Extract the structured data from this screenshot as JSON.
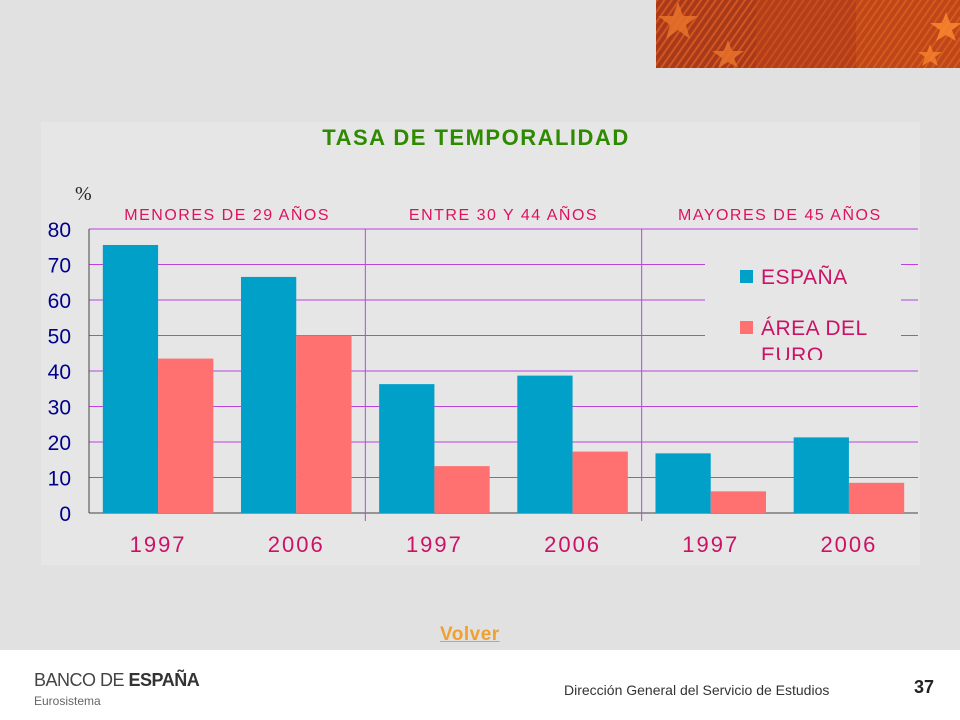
{
  "colors": {
    "espana": "#00a0c8",
    "euro": "#ff7070",
    "title": "#2e8b00",
    "group": "#e01060",
    "grid": "#bb44dd",
    "link": "#f0a030"
  },
  "chart_data": {
    "type": "bar",
    "title": "TASA DE TEMPORALIDAD",
    "ylabel": "%",
    "ylim": [
      0,
      80
    ],
    "yticks": [
      "0",
      "10",
      "20",
      "30",
      "40",
      "50",
      "60",
      "70",
      "80"
    ],
    "grid": true,
    "legend_position": "top-right",
    "groups": [
      "MENORES DE 29 AÑOS",
      "ENTRE 30 Y 44 AÑOS",
      "MAYORES DE 45 AÑOS"
    ],
    "categories": [
      "1997",
      "2006",
      "1997",
      "2006",
      "1997",
      "2006"
    ],
    "series": [
      {
        "name": "ESPAÑA",
        "values": [
          75.5,
          66.5,
          36.3,
          38.7,
          16.8,
          21.3
        ]
      },
      {
        "name": "ÁREA DEL EURO",
        "values": [
          43.5,
          50,
          13.2,
          17.3,
          6.1,
          8.5
        ]
      }
    ]
  },
  "nav": {
    "volver_label": "Volver"
  },
  "footer": {
    "logo_part1": "BANCO DE ",
    "logo_part2": "ESPAÑA",
    "logo_sub": "Eurosistema",
    "text": "Dirección General del Servicio de Estudios",
    "page_number": "37"
  }
}
